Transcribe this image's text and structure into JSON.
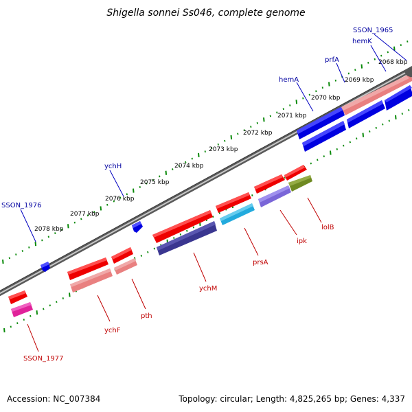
{
  "title": "Shigella sonnei Ss046, complete genome",
  "footer": {
    "accession": "Accession: NC_007384",
    "topology": "Topology: circular; Length: 4,825,265 bp; Genes: 4,337"
  },
  "ticks": [
    "2068 kbp",
    "2069 kbp",
    "2070 kbp",
    "2071 kbp",
    "2072 kbp",
    "2073 kbp",
    "2074 kbp",
    "2075 kbp",
    "2076 kbp",
    "2077 kbp",
    "2078 kbp"
  ],
  "labels_forward": [
    "SSON_1965",
    "hemK",
    "prfA",
    "hemA",
    "ychH",
    "SSON_1976"
  ],
  "labels_reverse": [
    "lolB",
    "ipk",
    "prsA",
    "ychM",
    "pth",
    "ychF",
    "SSON_1977"
  ],
  "colors": {
    "strand_forward": "#0000e0",
    "cds_red": "#ee0000",
    "cds_pink": "#e98080",
    "cds_purple": "#3a3690",
    "cds_cyan": "#22aadd",
    "cds_lavender": "#7a66d8",
    "cds_olive": "#6f8a22",
    "cds_magenta": "#e0229a",
    "backbone": "#777777",
    "dots": "#0a8a0a"
  }
}
